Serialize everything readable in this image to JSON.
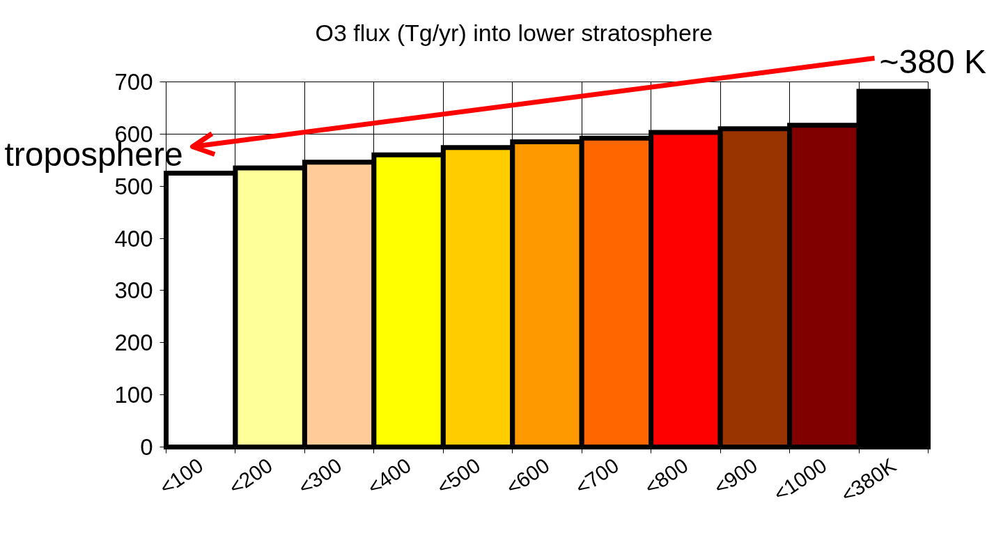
{
  "chart_data": {
    "type": "bar",
    "title": "O3 flux (Tg/yr) into lower stratosphere",
    "categories": [
      "<100",
      "<200",
      "<300",
      "<400",
      "<500",
      "<600",
      "<700",
      "<800",
      "<900",
      "<1000",
      "<380K"
    ],
    "values": [
      525,
      535,
      546,
      560,
      574,
      585,
      592,
      603,
      610,
      617,
      682
    ],
    "colors": [
      "#ffffff",
      "#ffff99",
      "#ffcc99",
      "#ffff00",
      "#ffcc00",
      "#ff9900",
      "#ff6600",
      "#ff0000",
      "#993300",
      "#800000",
      "#000000"
    ],
    "ylim": [
      0,
      700
    ],
    "yticks": [
      0,
      100,
      200,
      300,
      400,
      500,
      600,
      700
    ],
    "grid": true,
    "annotations": [
      "troposphere",
      "~380 K"
    ]
  }
}
